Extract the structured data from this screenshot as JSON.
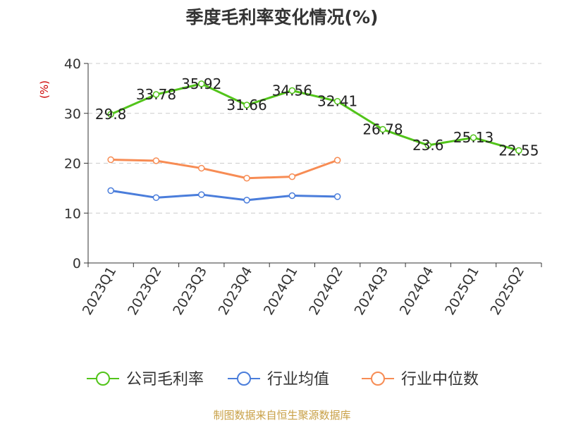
{
  "chart_data": {
    "type": "line",
    "title": "季度毛利率变化情况(%)",
    "ylabel": "(%)",
    "xlabel": "",
    "ylim": [
      0,
      40
    ],
    "yticks": [
      0,
      10,
      20,
      30,
      40
    ],
    "grid": true,
    "legend_position": "bottom",
    "categories": [
      "2023Q1",
      "2023Q2",
      "2023Q3",
      "2023Q4",
      "2024Q1",
      "2024Q2",
      "2024Q3",
      "2024Q4",
      "2025Q1",
      "2025Q2"
    ],
    "series": [
      {
        "name": "公司毛利率",
        "color": "#52c41a",
        "values": [
          29.8,
          33.78,
          35.92,
          31.66,
          34.56,
          32.41,
          26.78,
          23.6,
          25.13,
          22.55
        ],
        "labels": [
          "29.8",
          "33.78",
          "35.92",
          "31.66",
          "34.56",
          "32.41",
          "26.78",
          "23.6",
          "25.13",
          "22.55"
        ]
      },
      {
        "name": "行业均值",
        "color": "#4a7ddb",
        "values": [
          14.5,
          13.1,
          13.7,
          12.6,
          13.5,
          13.3,
          null,
          null,
          null,
          null
        ]
      },
      {
        "name": "行业中位数",
        "color": "#f78c54",
        "values": [
          20.7,
          20.5,
          19.0,
          17.0,
          17.3,
          20.6,
          null,
          null,
          null,
          null
        ]
      }
    ]
  },
  "footer": "制图数据来自恒生聚源数据库"
}
